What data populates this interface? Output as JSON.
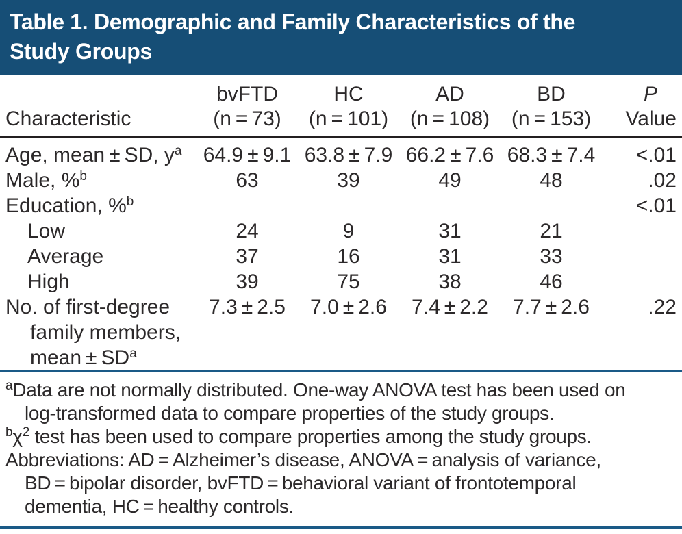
{
  "title": {
    "lines": [
      "Table 1. Demographic and Family Characteristics of the",
      "Study Groups"
    ]
  },
  "table": {
    "characteristic_header": "Characteristic",
    "group_headers": [
      {
        "name": "bvFTD",
        "n": "(n = 73)"
      },
      {
        "name": "HC",
        "n": "(n = 101)"
      },
      {
        "name": "AD",
        "n": "(n = 108)"
      },
      {
        "name": "BD",
        "n": "(n = 153)"
      }
    ],
    "p_header": {
      "symbol": "P",
      "word": "Value"
    },
    "rows": [
      {
        "label": "Age, mean ± SD, y",
        "sup": "a",
        "bvftd": "64.9 ± 9.1",
        "hc": "63.8 ± 7.9",
        "ad": "66.2 ± 7.6",
        "bd": "68.3 ± 7.4",
        "p": "<.01"
      },
      {
        "label": "Male, %",
        "sup": "b",
        "bvftd": "63",
        "hc": "39",
        "ad": "49",
        "bd": "48",
        "p": ".02"
      },
      {
        "label": "Education, %",
        "sup": "b",
        "bvftd": "",
        "hc": "",
        "ad": "",
        "bd": "",
        "p": "<.01"
      },
      {
        "label": "Low",
        "sup": "",
        "bvftd": "24",
        "hc": "9",
        "ad": "31",
        "bd": "21",
        "p": ""
      },
      {
        "label": "Average",
        "sup": "",
        "bvftd": "37",
        "hc": "16",
        "ad": "31",
        "bd": "33",
        "p": ""
      },
      {
        "label": "High",
        "sup": "",
        "bvftd": "39",
        "hc": "75",
        "ad": "38",
        "bd": "46",
        "p": ""
      },
      {
        "label": "No. of first-degree family members, mean ± SD",
        "sup": "a",
        "bvftd": "7.3 ± 2.5",
        "hc": "7.0 ± 2.6",
        "ad": "7.4 ± 2.2",
        "bd": "7.7 ± 2.6",
        "p": ".22"
      }
    ]
  },
  "footnotes": {
    "a": {
      "sup": "a",
      "lines": [
        "Data are not normally distributed. One-way ANOVA test has been used on",
        "log-transformed data to compare properties of the study groups."
      ]
    },
    "b": {
      "sup": "b",
      "chi": "χ",
      "chi_sup": "2",
      "text": " test has been used to compare properties among the study groups."
    },
    "abbreviations": {
      "lines": [
        "Abbreviations: AD = Alzheimer’s disease, ANOVA = analysis of variance,",
        "BD = bipolar disorder, bvFTD = behavioral variant of frontotemporal",
        "dementia, HC = healthy controls."
      ]
    }
  },
  "colors": {
    "band_blue": "#164e76",
    "rule_blue": "#1a5a87",
    "rule_dark": "#231f20",
    "text": "#2c292a"
  }
}
